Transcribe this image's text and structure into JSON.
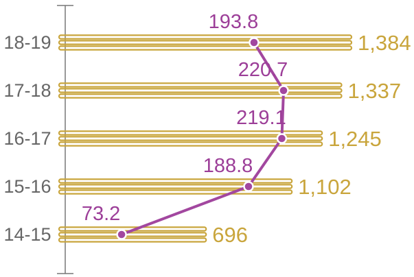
{
  "chart_data": {
    "type": "bar",
    "orientation": "horizontal",
    "categories": [
      "18-19",
      "17-18",
      "16-17",
      "15-16",
      "14-15"
    ],
    "series": [
      {
        "values": [
          1384,
          1337,
          1245,
          1102,
          696
        ]
      },
      {
        "values": [
          193.8,
          220.7,
          219.1,
          188.8,
          73.2
        ]
      }
    ],
    "value_labels": [
      "1,384",
      "1,337",
      "1,245",
      "1,102",
      "696"
    ],
    "line_labels": [
      "193.8",
      "220.7",
      "219.1",
      "188.8",
      "73.2"
    ],
    "title": "",
    "xlabel": "",
    "ylabel": "",
    "grid": false,
    "legend": "none",
    "colors": {
      "bar": "#c9a53c",
      "line": "#a2479f",
      "marker_stroke": "#ffffff",
      "axis": "#777777",
      "category_text": "#666666",
      "line_label": "#9c3e98"
    }
  }
}
